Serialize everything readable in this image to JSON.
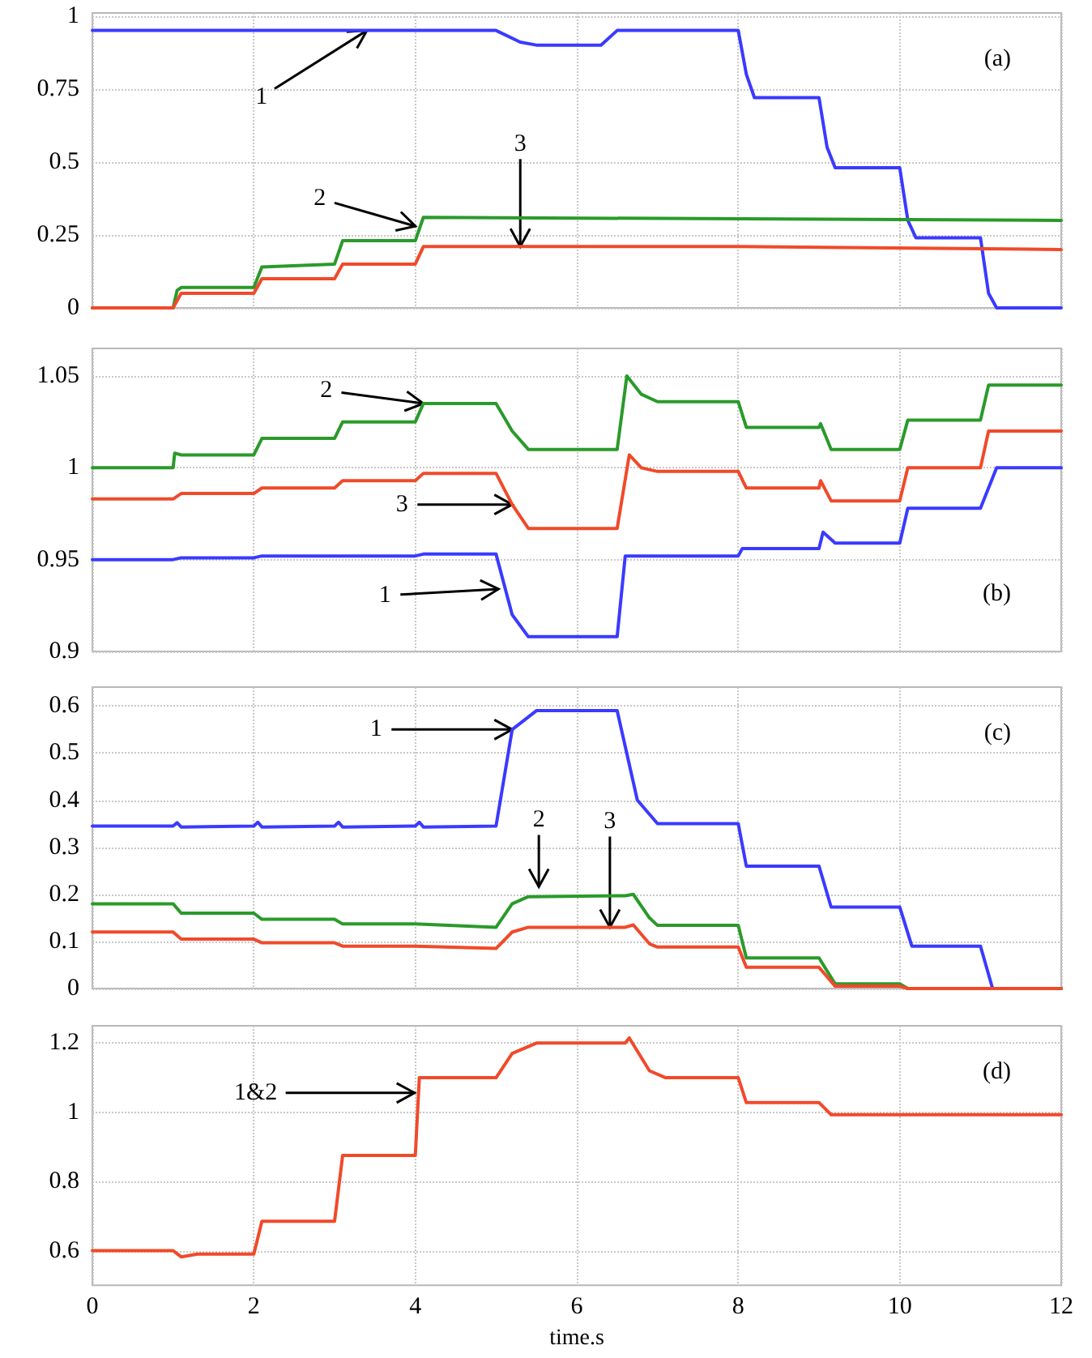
{
  "chart_data": [
    {
      "type": "line",
      "title": "(a)",
      "xlim": [
        0,
        12
      ],
      "xticks": [
        0,
        2,
        4,
        6,
        8,
        10,
        12
      ],
      "ylim": [
        0,
        1.01
      ],
      "yticks": [
        0,
        0.25,
        0.5,
        0.75,
        1
      ],
      "grid": true,
      "tick_labels": "y",
      "marker": "none",
      "line_style": "solid",
      "series": [
        {
          "color": "#3a3aff",
          "x": [
            0,
            5.0,
            5.3,
            5.5,
            6.3,
            6.5,
            8.0,
            8.1,
            8.2,
            9.0,
            9.1,
            9.2,
            10.0,
            10.1,
            10.2,
            11.0,
            11.1,
            11.2,
            12
          ],
          "values": [
            0.95,
            0.95,
            0.91,
            0.9,
            0.9,
            0.95,
            0.95,
            0.8,
            0.72,
            0.72,
            0.55,
            0.48,
            0.48,
            0.3,
            0.24,
            0.24,
            0.05,
            0,
            0
          ]
        },
        {
          "color": "#2a9a2a",
          "x": [
            0,
            1.0,
            1.05,
            1.1,
            2.0,
            2.1,
            3.0,
            3.1,
            4.0,
            4.1,
            12
          ],
          "values": [
            0,
            0,
            0.06,
            0.07,
            0.07,
            0.14,
            0.15,
            0.23,
            0.23,
            0.31,
            0.3
          ]
        },
        {
          "color": "#f04a2a",
          "x": [
            0,
            1.0,
            1.1,
            2.0,
            2.1,
            3.0,
            3.1,
            4.0,
            4.1,
            8.0,
            12
          ],
          "values": [
            0,
            0,
            0.05,
            0.05,
            0.1,
            0.1,
            0.15,
            0.15,
            0.21,
            0.21,
            0.2
          ]
        }
      ],
      "annotations": [
        {
          "text": "1",
          "x": 3.4,
          "y": 0.95
        },
        {
          "text": "2",
          "x": 4.0,
          "y": 0.28
        },
        {
          "text": "3",
          "x": 5.3,
          "y": 0.21
        }
      ]
    },
    {
      "type": "line",
      "title": "(b)",
      "xlim": [
        0,
        12
      ],
      "xticks": [
        0,
        2,
        4,
        6,
        8,
        10,
        12
      ],
      "ylim": [
        0.9,
        1.065
      ],
      "yticks": [
        0.9,
        0.95,
        1,
        1.05
      ],
      "grid": true,
      "tick_labels": "y",
      "marker": "none",
      "line_style": "solid",
      "series": [
        {
          "color": "#2a9a2a",
          "x": [
            0,
            1.0,
            1.02,
            1.1,
            2.0,
            2.1,
            3.0,
            3.1,
            4.0,
            4.1,
            5.0,
            5.2,
            5.4,
            6.5,
            6.62,
            6.8,
            7.0,
            8.0,
            8.1,
            9.0,
            9.02,
            9.15,
            10.0,
            10.1,
            11.0,
            11.1,
            12
          ],
          "values": [
            1.0,
            1.0,
            1.008,
            1.007,
            1.007,
            1.016,
            1.016,
            1.025,
            1.025,
            1.035,
            1.035,
            1.02,
            1.01,
            1.01,
            1.05,
            1.04,
            1.036,
            1.036,
            1.022,
            1.022,
            1.024,
            1.01,
            1.01,
            1.026,
            1.026,
            1.045,
            1.045
          ]
        },
        {
          "color": "#f04a2a",
          "x": [
            0,
            1.0,
            1.1,
            2.0,
            2.1,
            3.0,
            3.1,
            4.0,
            4.1,
            5.0,
            5.2,
            5.4,
            6.5,
            6.65,
            6.8,
            7.0,
            8.0,
            8.1,
            9.0,
            9.02,
            9.15,
            10.0,
            10.1,
            11.0,
            11.1,
            12
          ],
          "values": [
            0.983,
            0.983,
            0.986,
            0.986,
            0.989,
            0.989,
            0.993,
            0.993,
            0.997,
            0.997,
            0.98,
            0.967,
            0.967,
            1.007,
            1.0,
            0.998,
            0.998,
            0.989,
            0.989,
            0.993,
            0.982,
            0.982,
            1.0,
            1.0,
            1.02,
            1.02
          ]
        },
        {
          "color": "#3a3aff",
          "x": [
            0,
            1.0,
            1.1,
            2.0,
            2.1,
            4.0,
            4.1,
            5.0,
            5.2,
            5.4,
            6.5,
            6.6,
            8.0,
            8.05,
            9.0,
            9.05,
            9.2,
            10.0,
            10.1,
            11.0,
            11.2,
            12
          ],
          "values": [
            0.95,
            0.95,
            0.951,
            0.951,
            0.952,
            0.952,
            0.953,
            0.953,
            0.92,
            0.908,
            0.908,
            0.952,
            0.952,
            0.956,
            0.956,
            0.965,
            0.959,
            0.959,
            0.978,
            0.978,
            1.0,
            1.0
          ]
        }
      ],
      "annotations": [
        {
          "text": "2",
          "x": 4.1,
          "y": 1.035
        },
        {
          "text": "3",
          "x": 5.2,
          "y": 0.98
        },
        {
          "text": "1",
          "x": 5.03,
          "y": 0.934
        }
      ]
    },
    {
      "type": "line",
      "title": "(c)",
      "xlim": [
        0,
        12
      ],
      "xticks": [
        0,
        2,
        4,
        6,
        8,
        10,
        12
      ],
      "ylim": [
        0,
        0.64
      ],
      "yticks": [
        0,
        0.1,
        0.2,
        0.3,
        0.4,
        0.5,
        0.6
      ],
      "grid": true,
      "tick_labels": "y",
      "marker": "none",
      "line_style": "solid",
      "series": [
        {
          "color": "#3a3aff",
          "x": [
            0,
            1.0,
            1.05,
            1.1,
            2.0,
            2.05,
            2.1,
            3.0,
            3.05,
            3.1,
            4.0,
            4.05,
            4.1,
            5.0,
            5.2,
            5.5,
            6.5,
            6.75,
            7.0,
            8.0,
            8.1,
            9.0,
            9.15,
            10.0,
            10.15,
            11.0,
            11.15,
            12
          ],
          "values": [
            0.345,
            0.345,
            0.352,
            0.343,
            0.345,
            0.353,
            0.343,
            0.345,
            0.353,
            0.343,
            0.345,
            0.353,
            0.343,
            0.345,
            0.55,
            0.59,
            0.59,
            0.4,
            0.35,
            0.35,
            0.26,
            0.26,
            0.173,
            0.173,
            0.09,
            0.09,
            0,
            0
          ]
        },
        {
          "color": "#2a9a2a",
          "x": [
            0,
            1.0,
            1.1,
            2.0,
            2.1,
            3.0,
            3.1,
            4.0,
            5.0,
            5.2,
            5.4,
            6.6,
            6.7,
            6.9,
            7.0,
            8.0,
            8.1,
            9.0,
            9.2,
            10.0,
            10.1,
            12
          ],
          "values": [
            0.18,
            0.18,
            0.16,
            0.16,
            0.147,
            0.147,
            0.137,
            0.137,
            0.13,
            0.18,
            0.195,
            0.197,
            0.2,
            0.15,
            0.134,
            0.134,
            0.065,
            0.065,
            0.01,
            0.01,
            0,
            0
          ]
        },
        {
          "color": "#f04a2a",
          "x": [
            0,
            1.0,
            1.1,
            2.0,
            2.1,
            3.0,
            3.1,
            4.0,
            5.0,
            5.2,
            5.4,
            6.6,
            6.7,
            6.9,
            7.0,
            8.0,
            8.1,
            9.0,
            9.2,
            10.0,
            10.1,
            12
          ],
          "values": [
            0.12,
            0.12,
            0.105,
            0.105,
            0.097,
            0.097,
            0.09,
            0.09,
            0.085,
            0.12,
            0.13,
            0.13,
            0.135,
            0.095,
            0.088,
            0.088,
            0.045,
            0.045,
            0.005,
            0.005,
            0,
            0
          ]
        }
      ],
      "annotations": [
        {
          "text": "1",
          "x": 5.2,
          "y": 0.55
        },
        {
          "text": "2",
          "x": 5.53,
          "y": 0.216
        },
        {
          "text": "3",
          "x": 6.41,
          "y": 0.13
        }
      ]
    },
    {
      "type": "line",
      "title": "(d)",
      "xlabel": "time.s",
      "xlim": [
        0,
        12
      ],
      "xticks": [
        0,
        2,
        4,
        6,
        8,
        10,
        12
      ],
      "ylim": [
        0.5,
        1.25
      ],
      "yticks": [
        0.6,
        0.8,
        1,
        1.2
      ],
      "grid": true,
      "marker": "none",
      "line_style": "solid",
      "series": [
        {
          "color": "#f04a2a",
          "x": [
            0,
            1.0,
            1.1,
            1.3,
            2.0,
            2.1,
            3.0,
            3.1,
            4.0,
            4.05,
            5.0,
            5.2,
            5.5,
            6.6,
            6.65,
            6.9,
            7.1,
            8.0,
            8.1,
            9.0,
            9.15,
            12
          ],
          "values": [
            0.6,
            0.6,
            0.582,
            0.59,
            0.59,
            0.685,
            0.685,
            0.875,
            0.875,
            1.1,
            1.1,
            1.17,
            1.2,
            1.2,
            1.215,
            1.12,
            1.1,
            1.1,
            1.028,
            1.028,
            0.993,
            0.993
          ]
        }
      ],
      "annotations": [
        {
          "text": "1&2",
          "x": 3.99,
          "y": 1.056
        }
      ]
    }
  ]
}
